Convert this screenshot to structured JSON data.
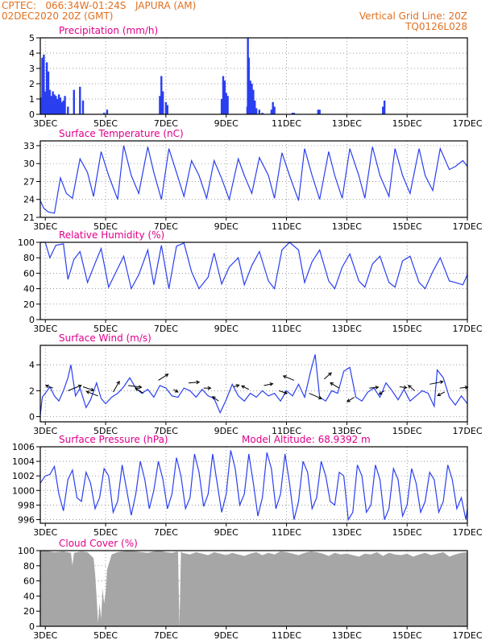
{
  "header": {
    "station": "CPTEC:   066:34W-01:24S   JAPURA (AM)",
    "datetime": "02DEC2020 20Z (GMT)",
    "grid_note": "Vertical Grid Line: 20Z",
    "code": "TQ0126L028"
  },
  "colors": {
    "header": "#e07020",
    "title": "#e0008a",
    "series": "#2a3ff0",
    "cloud": "#a6a6a6",
    "grid": "#777777"
  },
  "x_axis": {
    "start_day": 2.833,
    "end_day": 17.0,
    "tick_days": [
      3,
      5,
      7,
      9,
      11,
      13,
      15,
      17
    ],
    "tick_labels": [
      "3DEC",
      "5DEC",
      "7DEC",
      "9DEC",
      "11DEC",
      "13DEC",
      "15DEC",
      "17DEC"
    ]
  },
  "panels": {
    "precip": {
      "title": "Precipitation (mm/h)",
      "y_ticks": [
        0,
        1,
        2,
        3,
        4,
        5
      ],
      "y_tick_labels": [
        "0",
        "1",
        "2",
        "3",
        "4",
        "5"
      ]
    },
    "temp": {
      "title": "Surface Temperature (nC)",
      "y_ticks": [
        21,
        24,
        27,
        30,
        33
      ],
      "y_tick_labels": [
        "21",
        "24",
        "27",
        "30",
        "33"
      ]
    },
    "rh": {
      "title": "Relative Humidity (%)",
      "y_ticks": [
        0,
        20,
        40,
        60,
        80,
        100
      ],
      "y_tick_labels": [
        "0",
        "20",
        "40",
        "60",
        "80",
        "100"
      ]
    },
    "wind": {
      "title": "Surface Wind (m/s)",
      "y_ticks": [
        0,
        2,
        4
      ],
      "y_tick_labels": [
        "0",
        "2",
        "4"
      ]
    },
    "pres": {
      "title": "Surface Pressure (hPa)",
      "subtitle": "Model Altitude: 68.9392 m",
      "y_ticks": [
        996,
        998,
        1000,
        1002,
        1004,
        1006
      ],
      "y_tick_labels": [
        "996",
        "998",
        "1000",
        "1002",
        "1004",
        "1006"
      ]
    },
    "cloud": {
      "title": "Cloud Cover (%)",
      "y_ticks": [
        0,
        20,
        40,
        60,
        80,
        100
      ],
      "y_tick_labels": [
        "0",
        "20",
        "40",
        "60",
        "80",
        "100"
      ]
    }
  },
  "chart_data": [
    {
      "type": "bar",
      "title": "Precipitation (mm/h)",
      "xlim": [
        "2DEC 20Z",
        "17DEC"
      ],
      "ylim": [
        0,
        5
      ],
      "x_units": "day of December 2020",
      "x": [
        2.85,
        2.9,
        2.95,
        3.0,
        3.05,
        3.1,
        3.15,
        3.2,
        3.25,
        3.3,
        3.35,
        3.4,
        3.45,
        3.5,
        3.55,
        3.6,
        3.65,
        3.75,
        3.95,
        4.15,
        4.25,
        4.95,
        5.05,
        6.8,
        6.85,
        6.9,
        7.0,
        7.05,
        8.85,
        8.9,
        8.95,
        9.0,
        9.05,
        9.7,
        9.72,
        9.75,
        9.8,
        9.85,
        9.9,
        9.95,
        10.0,
        10.1,
        10.2,
        10.5,
        10.55,
        10.6,
        11.2,
        11.25,
        12.05,
        12.1,
        14.2,
        14.25
      ],
      "values": [
        1.1,
        3.7,
        3.9,
        1.5,
        3.4,
        2.8,
        1.6,
        1.2,
        1.5,
        1.3,
        1.2,
        1.0,
        1.3,
        1.1,
        0.8,
        0.9,
        1.2,
        0.5,
        1.6,
        1.8,
        0.9,
        0.1,
        0.3,
        1.2,
        2.5,
        1.5,
        0.8,
        0.6,
        1.0,
        2.5,
        2.2,
        1.4,
        1.2,
        0.5,
        5.0,
        3.7,
        2.2,
        2.0,
        1.6,
        0.9,
        0.4,
        0.3,
        0.1,
        0.3,
        0.8,
        0.5,
        0.1,
        0.1,
        0.3,
        0.3,
        0.5,
        0.9
      ]
    },
    {
      "type": "line",
      "title": "Surface Temperature (nC)",
      "ylim": [
        21,
        33.8
      ],
      "x_units": "day of December 2020",
      "x": [
        2.833,
        2.95,
        3.1,
        3.3,
        3.5,
        3.7,
        3.9,
        4.15,
        4.4,
        4.6,
        4.85,
        5.1,
        5.4,
        5.6,
        5.85,
        6.1,
        6.4,
        6.6,
        6.85,
        7.1,
        7.35,
        7.6,
        7.85,
        8.1,
        8.35,
        8.6,
        8.85,
        9.1,
        9.4,
        9.6,
        9.85,
        10.1,
        10.4,
        10.6,
        10.85,
        11.1,
        11.4,
        11.6,
        11.85,
        12.1,
        12.4,
        12.6,
        12.85,
        13.1,
        13.4,
        13.6,
        13.85,
        14.1,
        14.4,
        14.6,
        14.85,
        15.1,
        15.4,
        15.6,
        15.85,
        16.1,
        16.4,
        16.6,
        16.85,
        17.0
      ],
      "values": [
        23.8,
        22.5,
        21.9,
        21.7,
        27.6,
        25.0,
        24.2,
        30.8,
        28.5,
        24.5,
        32.0,
        28.0,
        24.0,
        33.0,
        28.0,
        25.0,
        32.8,
        28.5,
        24.0,
        32.5,
        28.5,
        24.5,
        30.5,
        28.0,
        24.2,
        30.5,
        27.5,
        24.0,
        30.8,
        28.0,
        25.0,
        31.0,
        28.0,
        24.2,
        31.8,
        28.0,
        23.8,
        32.5,
        28.0,
        24.0,
        32.0,
        28.0,
        24.2,
        32.5,
        28.0,
        24.2,
        32.8,
        28.0,
        24.5,
        32.5,
        28.0,
        25.0,
        32.5,
        28.0,
        25.5,
        32.5,
        29.0,
        29.5,
        30.5,
        29.5
      ]
    },
    {
      "type": "line",
      "title": "Relative Humidity (%)",
      "ylim": [
        0,
        100
      ],
      "x_units": "day of December 2020",
      "x": [
        2.833,
        3.0,
        3.15,
        3.35,
        3.6,
        3.75,
        3.95,
        4.15,
        4.4,
        4.6,
        4.85,
        5.1,
        5.4,
        5.6,
        5.85,
        6.1,
        6.4,
        6.6,
        6.85,
        7.1,
        7.35,
        7.6,
        7.85,
        8.1,
        8.4,
        8.6,
        8.85,
        9.1,
        9.4,
        9.6,
        9.85,
        10.1,
        10.4,
        10.6,
        10.85,
        11.1,
        11.4,
        11.6,
        11.85,
        12.1,
        12.4,
        12.6,
        12.85,
        13.1,
        13.4,
        13.6,
        13.85,
        14.1,
        14.4,
        14.6,
        14.85,
        15.1,
        15.4,
        15.6,
        15.85,
        16.1,
        16.4,
        16.6,
        16.85,
        17.0
      ],
      "values": [
        100,
        100,
        80,
        96,
        98,
        52,
        78,
        88,
        48,
        68,
        92,
        42,
        66,
        82,
        40,
        58,
        90,
        45,
        96,
        40,
        95,
        99,
        62,
        40,
        55,
        86,
        46,
        68,
        80,
        45,
        70,
        88,
        50,
        40,
        90,
        100,
        90,
        48,
        75,
        90,
        50,
        40,
        68,
        85,
        50,
        42,
        72,
        82,
        48,
        42,
        76,
        82,
        48,
        40,
        62,
        80,
        50,
        48,
        45,
        58
      ]
    },
    {
      "type": "line",
      "title": "Surface Wind (m/s)",
      "ylim": [
        -0.4,
        5.5
      ],
      "x_units": "day of December 2020",
      "x": [
        2.833,
        2.9,
        3.0,
        3.15,
        3.3,
        3.45,
        3.6,
        3.75,
        3.85,
        4.0,
        4.15,
        4.35,
        4.5,
        4.7,
        4.85,
        5.0,
        5.2,
        5.4,
        5.6,
        5.8,
        6.0,
        6.2,
        6.4,
        6.6,
        6.8,
        7.0,
        7.2,
        7.4,
        7.6,
        7.8,
        8.0,
        8.2,
        8.4,
        8.6,
        8.8,
        9.0,
        9.2,
        9.4,
        9.6,
        9.8,
        10.0,
        10.2,
        10.4,
        10.6,
        10.8,
        11.0,
        11.2,
        11.4,
        11.6,
        11.8,
        11.95,
        12.1,
        12.3,
        12.5,
        12.7,
        12.9,
        13.1,
        13.3,
        13.5,
        13.7,
        13.9,
        14.1,
        14.3,
        14.5,
        14.7,
        14.9,
        15.1,
        15.3,
        15.5,
        15.7,
        15.9,
        16.0,
        16.2,
        16.4,
        16.6,
        16.8,
        17.0
      ],
      "values": [
        0.1,
        1.5,
        1.8,
        2.3,
        1.6,
        1.2,
        2.0,
        3.0,
        4.0,
        1.6,
        2.2,
        0.7,
        1.3,
        2.6,
        1.4,
        1.0,
        1.5,
        1.8,
        2.3,
        3.0,
        2.2,
        1.8,
        2.1,
        1.5,
        2.4,
        2.2,
        1.6,
        1.5,
        2.2,
        2.0,
        1.5,
        2.1,
        1.6,
        1.4,
        0.3,
        1.3,
        2.5,
        1.6,
        1.2,
        1.8,
        1.5,
        2.0,
        1.6,
        1.8,
        1.2,
        2.0,
        1.6,
        2.5,
        1.5,
        3.5,
        4.8,
        1.5,
        1.2,
        2.0,
        1.8,
        3.5,
        3.8,
        1.5,
        1.2,
        1.9,
        2.2,
        1.5,
        2.6,
        2.0,
        1.3,
        2.1,
        1.2,
        1.6,
        2.0,
        1.8,
        0.8,
        3.6,
        3.0,
        1.5,
        0.9,
        1.6,
        1.0
      ]
    },
    {
      "type": "line",
      "title": "Surface Pressure (hPa)",
      "ylim": [
        995.5,
        1006
      ],
      "x_units": "day of December 2020",
      "x": [
        2.833,
        3.0,
        3.15,
        3.3,
        3.45,
        3.6,
        3.75,
        3.9,
        4.05,
        4.2,
        4.35,
        4.5,
        4.65,
        4.8,
        4.95,
        5.1,
        5.25,
        5.4,
        5.55,
        5.7,
        5.85,
        6.0,
        6.15,
        6.3,
        6.45,
        6.6,
        6.75,
        6.9,
        7.05,
        7.2,
        7.35,
        7.5,
        7.65,
        7.8,
        7.95,
        8.1,
        8.25,
        8.4,
        8.55,
        8.7,
        8.85,
        9.0,
        9.15,
        9.3,
        9.45,
        9.6,
        9.75,
        9.9,
        10.05,
        10.2,
        10.35,
        10.5,
        10.65,
        10.8,
        10.95,
        11.1,
        11.25,
        11.4,
        11.55,
        11.7,
        11.85,
        12.0,
        12.15,
        12.3,
        12.45,
        12.6,
        12.75,
        12.9,
        13.05,
        13.2,
        13.35,
        13.5,
        13.65,
        13.8,
        13.95,
        14.1,
        14.25,
        14.4,
        14.55,
        14.7,
        14.85,
        15.0,
        15.15,
        15.3,
        15.45,
        15.6,
        15.75,
        15.9,
        16.05,
        16.2,
        16.35,
        16.5,
        16.65,
        16.8,
        16.95,
        17.0
      ],
      "values": [
        1001.0,
        1002.0,
        1002.2,
        1003.3,
        999.5,
        997.2,
        1001.5,
        1002.8,
        999.0,
        998.5,
        1002.5,
        1001.0,
        997.5,
        999.0,
        1003.0,
        1002.0,
        997.0,
        998.5,
        1003.5,
        1000.0,
        996.6,
        999.5,
        1004.0,
        1001.5,
        997.5,
        1000.0,
        1004.0,
        1001.5,
        997.5,
        999.5,
        1004.5,
        1002.0,
        997.5,
        999.0,
        1005.0,
        1002.5,
        997.8,
        999.5,
        1005.0,
        1001.0,
        997.0,
        999.5,
        1005.5,
        1003.0,
        998.0,
        999.5,
        1005.0,
        1001.0,
        996.5,
        999.0,
        1005.2,
        1003.0,
        997.5,
        999.5,
        1005.0,
        1001.0,
        996.0,
        998.5,
        1004.0,
        1002.5,
        997.5,
        999.0,
        1004.0,
        1002.0,
        998.5,
        998.0,
        1002.5,
        1002.0,
        996.0,
        997.0,
        1003.5,
        1002.0,
        997.0,
        998.0,
        1003.5,
        1001.5,
        996.0,
        997.5,
        1003.0,
        1001.5,
        996.5,
        998.0,
        1003.0,
        1001.0,
        997.0,
        998.5,
        1002.5,
        1001.5,
        997.0,
        998.5,
        1003.5,
        1001.5,
        997.5,
        999.0,
        996.0,
        997.5
      ]
    },
    {
      "type": "area",
      "title": "Cloud Cover (%)",
      "ylim": [
        0,
        100
      ],
      "x_units": "day of December 2020",
      "x": [
        2.833,
        3.0,
        3.3,
        3.6,
        3.85,
        3.9,
        3.95,
        4.2,
        4.4,
        4.6,
        4.65,
        4.7,
        4.75,
        4.8,
        4.85,
        4.9,
        4.95,
        5.0,
        5.05,
        5.2,
        5.4,
        5.6,
        5.8,
        6.0,
        6.2,
        6.4,
        6.6,
        6.8,
        7.0,
        7.2,
        7.4,
        7.45,
        7.5,
        7.55,
        7.8,
        8.0,
        8.2,
        8.4,
        8.6,
        8.8,
        9.0,
        9.2,
        9.4,
        9.6,
        9.8,
        10.0,
        10.2,
        10.4,
        10.6,
        10.8,
        11.0,
        11.2,
        11.4,
        11.6,
        11.8,
        12.0,
        12.2,
        12.4,
        12.6,
        12.8,
        13.0,
        13.2,
        13.4,
        13.6,
        13.8,
        14.0,
        14.2,
        14.4,
        14.6,
        14.8,
        15.0,
        15.2,
        15.4,
        15.6,
        15.8,
        16.0,
        16.2,
        16.4,
        16.6,
        16.8,
        17.0
      ],
      "values": [
        100,
        100,
        98,
        99,
        97,
        80,
        97,
        99,
        98,
        90,
        70,
        40,
        5,
        30,
        10,
        50,
        30,
        45,
        75,
        95,
        98,
        99,
        100,
        99,
        98,
        97,
        99,
        100,
        98,
        97,
        99,
        0,
        99,
        97,
        95,
        98,
        96,
        94,
        98,
        96,
        94,
        97,
        95,
        93,
        96,
        98,
        94,
        97,
        95,
        99,
        98,
        96,
        94,
        97,
        99,
        98,
        96,
        93,
        97,
        95,
        96,
        94,
        92,
        96,
        95,
        98,
        93,
        97,
        95,
        94,
        96,
        92,
        95,
        97,
        94,
        96,
        98,
        92,
        95,
        97,
        98
      ]
    },
    {
      "type": "scatter",
      "title": "Surface Wind vectors (m/s)",
      "x_units": "day of December 2020",
      "x": [
        3.25,
        3.75,
        4.25,
        4.75,
        5.25,
        5.75,
        6.25,
        6.75,
        7.25,
        7.75,
        8.25,
        8.75,
        9.25,
        9.75,
        10.25,
        10.75,
        11.25,
        11.75,
        12.25,
        12.75,
        13.25,
        13.75,
        14.25,
        14.75,
        15.25,
        15.75,
        16.25,
        16.75
      ],
      "y": [
        2.2,
        2.0,
        2.3,
        1.6,
        1.9,
        2.4,
        1.8,
        2.8,
        2.1,
        2.6,
        2.2,
        1.2,
        2.3,
        2.1,
        2.4,
        2.0,
        2.8,
        1.8,
        2.9,
        2.2,
        1.5,
        2.2,
        2.0,
        2.3,
        2.0,
        2.5,
        1.9,
        2.2
      ],
      "u": [
        -0.8,
        1.5,
        1.2,
        -1.3,
        0.7,
        1.5,
        -0.9,
        1.1,
        0.5,
        1.2,
        0.8,
        -0.7,
        0.6,
        -0.8,
        1.0,
        0.9,
        -1.2,
        1.4,
        0.8,
        -1.0,
        -0.8,
        1.0,
        -0.6,
        0.8,
        -0.7,
        1.5,
        -0.8,
        0.9
      ],
      "v": [
        0.3,
        0.6,
        -0.4,
        0.5,
        1.2,
        -0.2,
        0.6,
        0.7,
        -0.3,
        0.1,
        0.0,
        0.5,
        0.2,
        0.4,
        0.2,
        -0.3,
        0.5,
        -0.6,
        0.7,
        0.6,
        -0.5,
        0.1,
        -0.4,
        -0.1,
        0.6,
        0.3,
        -0.4,
        0.1
      ]
    }
  ]
}
